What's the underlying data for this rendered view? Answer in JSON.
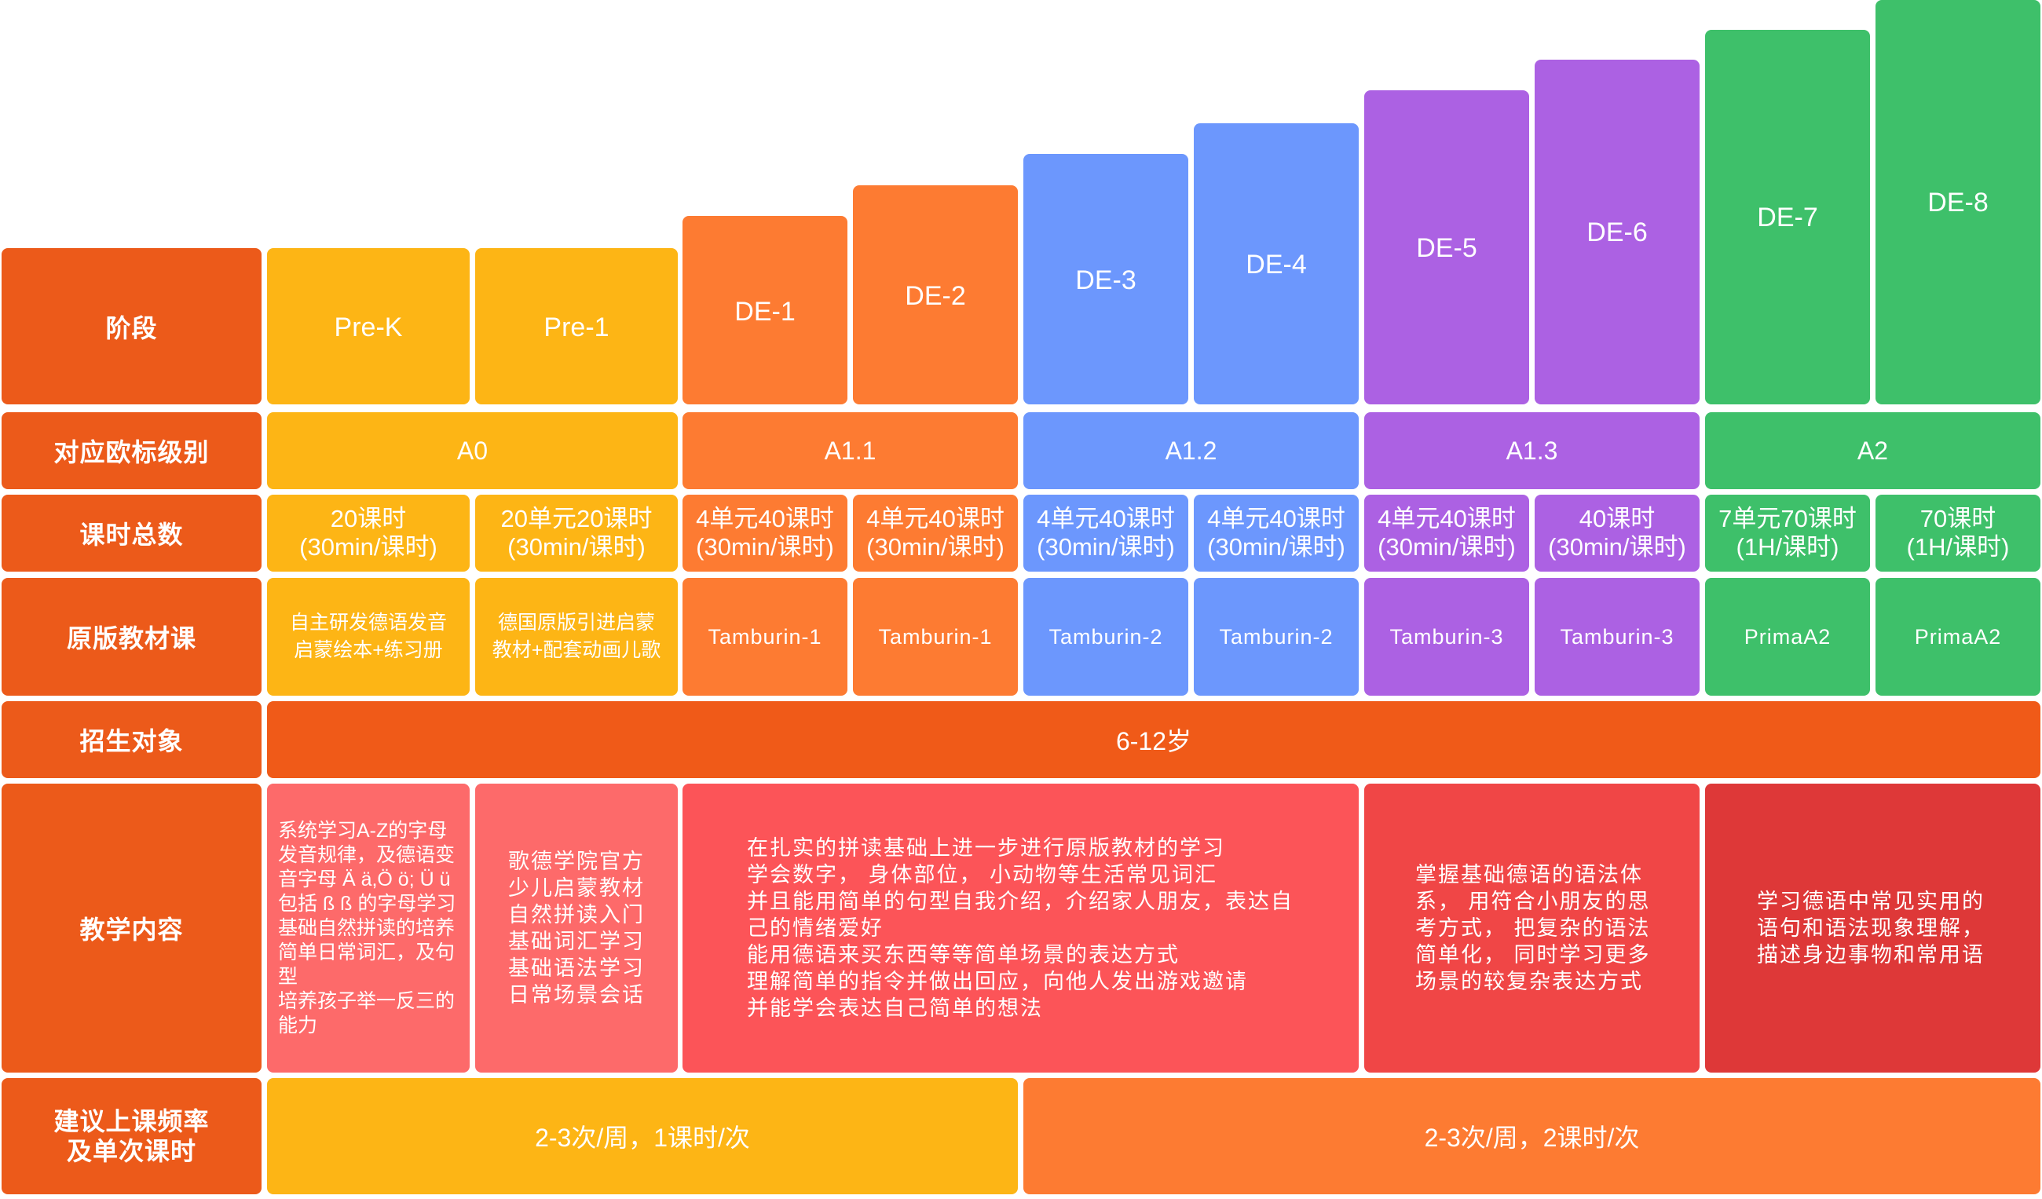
{
  "row_headers": {
    "stage": "阶段",
    "cefr": "对应欧标级别",
    "total_hours": "课时总数",
    "textbook": "原版教材课",
    "target_students": "招生对象",
    "content": "教学内容",
    "frequency": "建议上课频率\n及单次课时"
  },
  "stages": [
    "Pre-K",
    "Pre-1",
    "DE-1",
    "DE-2",
    "DE-3",
    "DE-4",
    "DE-5",
    "DE-6",
    "DE-7",
    "DE-8"
  ],
  "cefr_levels": [
    "A0",
    "A1.1",
    "A1.2",
    "A1.3",
    "A2"
  ],
  "hours": [
    {
      "line1": "20课时",
      "line2": "(30min/课时)"
    },
    {
      "line1": "20单元20课时",
      "line2": "(30min/课时)"
    },
    {
      "line1": "4单元40课时",
      "line2": "(30min/课时)"
    },
    {
      "line1": "4单元40课时",
      "line2": "(30min/课时)"
    },
    {
      "line1": "4单元40课时",
      "line2": "(30min/课时)"
    },
    {
      "line1": "4单元40课时",
      "line2": "(30min/课时)"
    },
    {
      "line1": "4单元40课时",
      "line2": "(30min/课时)"
    },
    {
      "line1": "40课时",
      "line2": "(30min/课时)"
    },
    {
      "line1": "7单元70课时",
      "line2": "(1H/课时)"
    },
    {
      "line1": "70课时",
      "line2": "(1H/课时)"
    }
  ],
  "textbooks": [
    "自主研发德语发音\n启蒙绘本+练习册",
    "德国原版引进启蒙\n教材+配套动画儿歌",
    "Tamburin-1",
    "Tamburin-1",
    "Tamburin-2",
    "Tamburin-2",
    "Tamburin-3",
    "Tamburin-3",
    "PrimaA2",
    "PrimaA2"
  ],
  "target_students": "6-12岁",
  "content": [
    "系统学习A-Z的字母发音规律，及德语变音字母 Ä ä,Ö ö; Ü ü 包括 ß ß 的字母学习\n基础自然拼读的培养\n简单日常词汇，及句型\n培养孩子举一反三的能力",
    "歌德学院官方\n少儿启蒙教材\n自然拼读入门\n基础词汇学习\n基础语法学习\n日常场景会话",
    "在扎实的拼读基础上进一步进行原版教材的学习\n学会数字， 身体部位， 小动物等生活常见词汇\n并且能用简单的句型自我介绍，介绍家人朋友，表达自己的情绪爱好\n能用德语来买东西等等简单场景的表达方式\n理解简单的指令并做出回应，向他人发出游戏邀请\n并能学会表达自己简单的想法",
    "掌握基础德语的语法体系， 用符合小朋友的思考方式， 把复杂的语法简单化， 同时学习更多场景的较复杂表达方式",
    "学习德语中常见实用的语句和语法现象理解，描述身边事物和常用语"
  ],
  "frequency": [
    "2-3次/周，1课时/次",
    "2-3次/周，2课时/次"
  ],
  "colors": {
    "header": "#ec5a1a",
    "yellow": "#fdb515",
    "orange": "#fd7b32",
    "blue": "#6c97fd",
    "purple": "#ac61e3",
    "green": "#3ec06a",
    "red": "#f04646"
  }
}
